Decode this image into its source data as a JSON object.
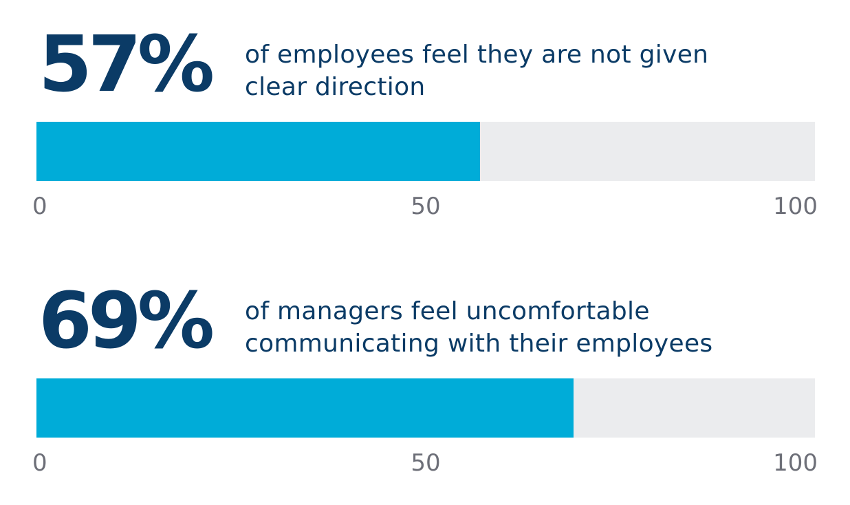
{
  "chart_data": [
    {
      "type": "bar",
      "value": 57,
      "value_label": "57%",
      "caption_lines": [
        "of employees feel they are not given",
        "clear direction"
      ],
      "xlim": [
        0,
        100
      ],
      "ticks": [
        "0",
        "50",
        "100"
      ],
      "colors": {
        "fill": "#00acd8",
        "track": "#ebecee",
        "value_text": "#0b3b66",
        "tick_text": "#6d6f78"
      }
    },
    {
      "type": "bar",
      "value": 69,
      "value_label": "69%",
      "caption_lines": [
        "of managers feel uncomfortable",
        "communicating with their employees"
      ],
      "xlim": [
        0,
        100
      ],
      "ticks": [
        "0",
        "50",
        "100"
      ],
      "colors": {
        "fill": "#00acd8",
        "track": "#ebecee",
        "value_text": "#0b3b66",
        "tick_text": "#6d6f78"
      }
    }
  ]
}
